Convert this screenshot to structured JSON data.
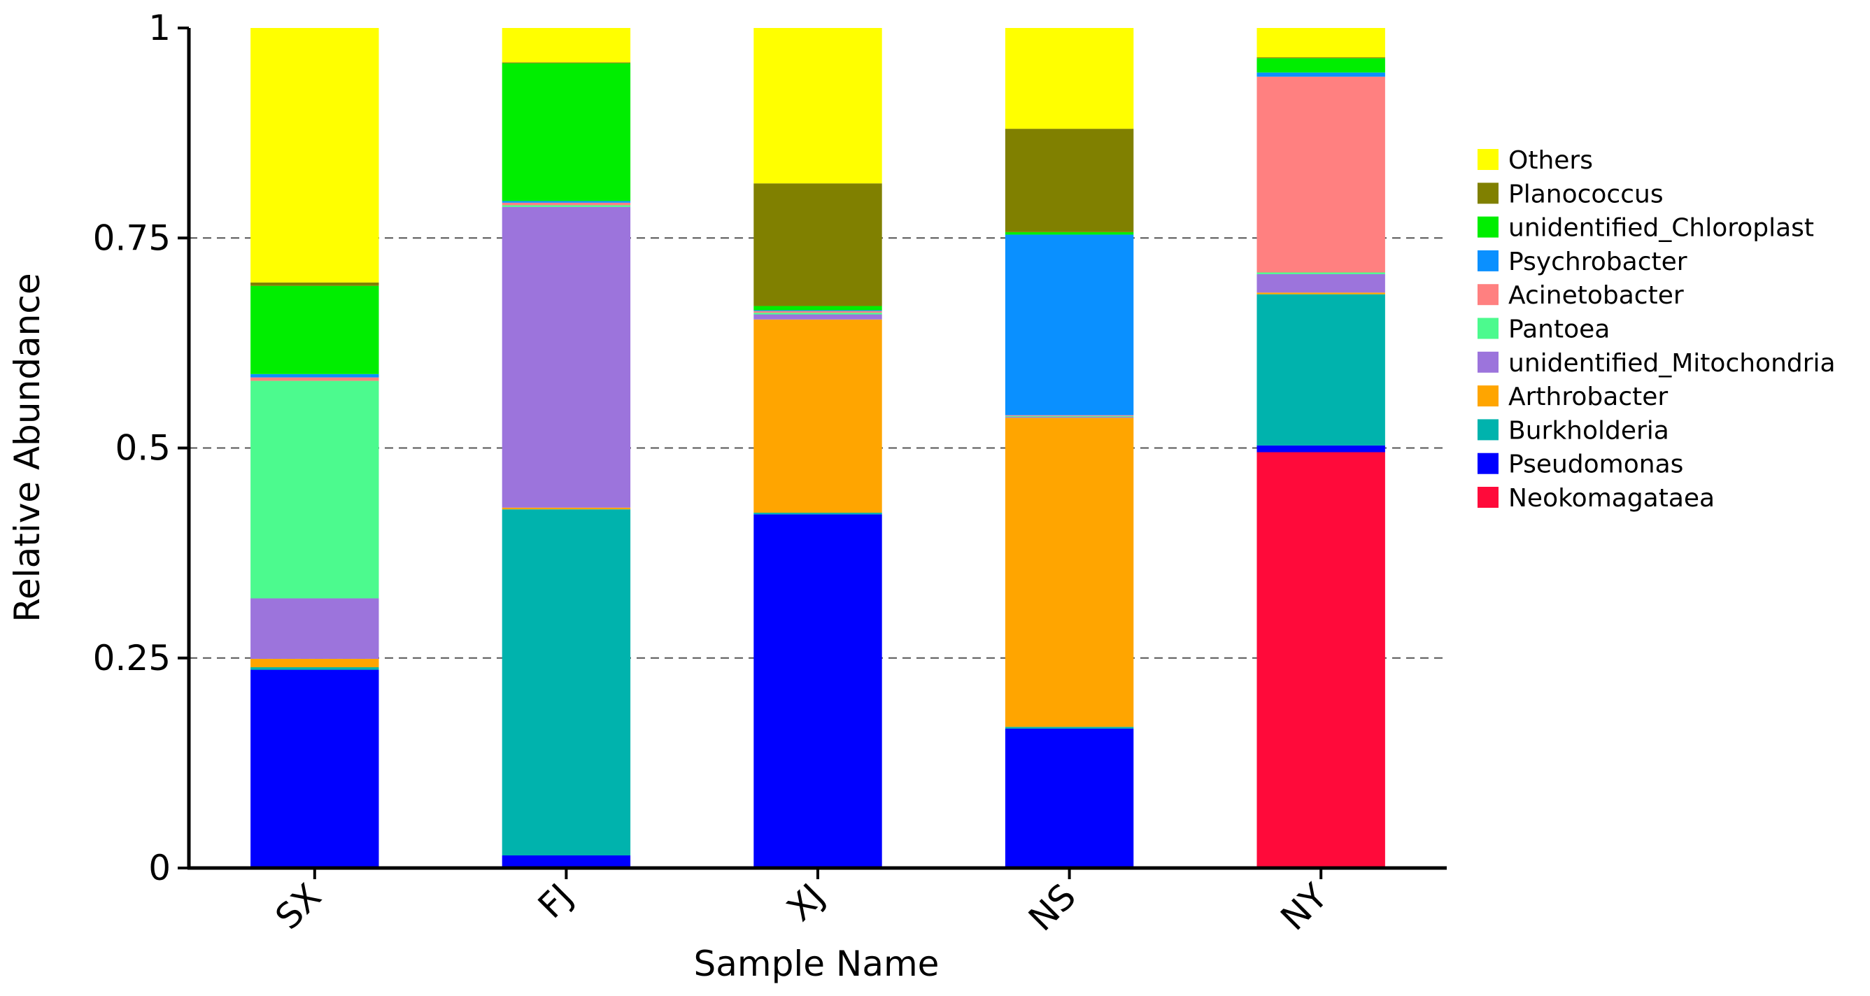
{
  "chart_data": {
    "type": "bar",
    "stacked": true,
    "xlabel": "Sample Name",
    "ylabel": "Relative Abundance",
    "ylim": [
      0,
      1
    ],
    "yticks": [
      0,
      0.25,
      0.5,
      0.75,
      1
    ],
    "ytick_labels": [
      "0",
      "0.25",
      "0.5",
      "0.75",
      "1"
    ],
    "grid": "horizontal dashed at 0.25, 0.5, 0.75",
    "legend_position": "right",
    "categories": [
      "SX",
      "FJ",
      "XJ",
      "NS",
      "NY"
    ],
    "series": [
      {
        "name": "Neokomagataea",
        "color": "#ff0a3a",
        "values": [
          0,
          0,
          0,
          0,
          0.495
        ]
      },
      {
        "name": "Pseudomonas",
        "color": "#0000ff",
        "values": [
          0.236,
          0.015,
          0.421,
          0.166,
          0.008
        ]
      },
      {
        "name": "Burkholderia",
        "color": "#00b3ad",
        "values": [
          0.003,
          0.412,
          0.002,
          0.002,
          0.18
        ]
      },
      {
        "name": "Arthrobacter",
        "color": "#ffa500",
        "values": [
          0.01,
          0.002,
          0.23,
          0.368,
          0.002
        ]
      },
      {
        "name": "unidentified_Mitochondria",
        "color": "#9c74dc",
        "values": [
          0.072,
          0.358,
          0.006,
          0.001,
          0.022
        ]
      },
      {
        "name": "Pantoea",
        "color": "#4cfa8e",
        "values": [
          0.259,
          0.002,
          0.002,
          0.001,
          0.002
        ]
      },
      {
        "name": "Acinetobacter",
        "color": "#ff8080",
        "values": [
          0.004,
          0.003,
          0.002,
          0.001,
          0.233
        ]
      },
      {
        "name": "Psychrobacter",
        "color": "#0a90ff",
        "values": [
          0.004,
          0.002,
          0.001,
          0.215,
          0.005
        ]
      },
      {
        "name": "unidentified_Chloroplast",
        "color": "#00ee00",
        "values": [
          0.105,
          0.164,
          0.005,
          0.003,
          0.017
        ]
      },
      {
        "name": "Planococcus",
        "color": "#808000",
        "values": [
          0.004,
          0.001,
          0.146,
          0.123,
          0.001
        ]
      },
      {
        "name": "Others",
        "color": "#ffff00",
        "values": [
          0.303,
          0.041,
          0.185,
          0.12,
          0.035
        ]
      }
    ]
  }
}
